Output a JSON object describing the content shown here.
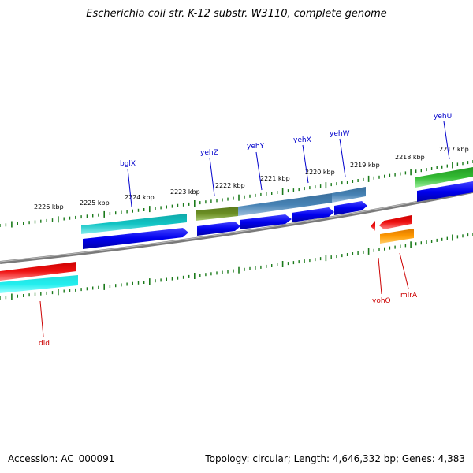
{
  "title": "Escherichia coli str. K-12 substr. W3110, complete genome",
  "footer": {
    "accession": "Accession: AC_000091",
    "summary": "Topology: circular; Length: 4,646,332 bp; Genes: 4,383"
  },
  "ticks": [
    "2226 kbp",
    "2225 kbp",
    "2224 kbp",
    "2223 kbp",
    "2222 kbp",
    "2221 kbp",
    "2220 kbp",
    "2219 kbp",
    "2218 kbp",
    "2217 kbp"
  ],
  "genes_forward": [
    "bglX",
    "yehZ",
    "yehY",
    "yehX",
    "yehW",
    "yehU"
  ],
  "genes_reverse": [
    "dld",
    "yohO",
    "mlrA"
  ],
  "colors": {
    "forward_label": "#0000cc",
    "reverse_label": "#cc0000",
    "tick": "#1a7a1a",
    "backbone": "#808080",
    "blue": "#0000ee",
    "cyan": "#11c4c4",
    "cyan_bright": "#22eeee",
    "olive": "#6b8e23",
    "steel": "#4682b4",
    "green": "#33bb33",
    "red": "#ee1111",
    "orange": "#ff9900"
  }
}
